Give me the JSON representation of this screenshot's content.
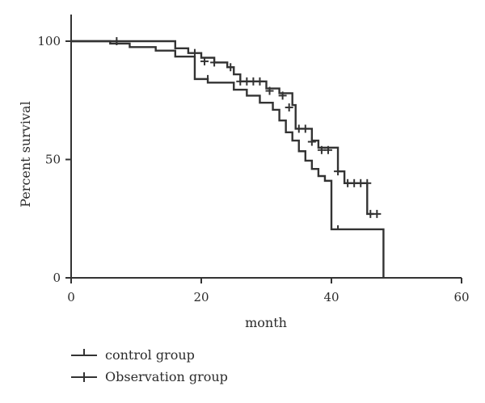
{
  "chart_data": {
    "type": "line",
    "subtype": "kaplan-meier",
    "title": "",
    "xlabel": "month",
    "ylabel": "Percent survival",
    "xlim": [
      0,
      60
    ],
    "ylim": [
      0,
      100
    ],
    "xticks": [
      0,
      20,
      40,
      60
    ],
    "yticks": [
      0,
      50,
      100
    ],
    "grid": false,
    "legend_position": "bottom-left",
    "series": [
      {
        "name": "control group",
        "color": "#333333",
        "marker": "censor-tick",
        "steps": [
          [
            0,
            100
          ],
          [
            6,
            99
          ],
          [
            9,
            97.5
          ],
          [
            13,
            96
          ],
          [
            16,
            93.5
          ],
          [
            19,
            84
          ],
          [
            21,
            82.5
          ],
          [
            25,
            79.5
          ],
          [
            27,
            77
          ],
          [
            29,
            74
          ],
          [
            31,
            71
          ],
          [
            32,
            66.5
          ],
          [
            33,
            61.5
          ],
          [
            34,
            58
          ],
          [
            35,
            53.5
          ],
          [
            36,
            49.5
          ],
          [
            37,
            46
          ],
          [
            38,
            43
          ],
          [
            39,
            41
          ],
          [
            40,
            20.5
          ],
          [
            48,
            20.5
          ],
          [
            48,
            0
          ]
        ],
        "censored": [
          [
            7,
            99
          ],
          [
            21,
            84
          ],
          [
            41,
            20.5
          ]
        ]
      },
      {
        "name": "Observation group",
        "color": "#333333",
        "marker": "censor-cross",
        "steps": [
          [
            0,
            100
          ],
          [
            16,
            97
          ],
          [
            18,
            95
          ],
          [
            20,
            93
          ],
          [
            22,
            91
          ],
          [
            24,
            89
          ],
          [
            25,
            86
          ],
          [
            26,
            83
          ],
          [
            30,
            80
          ],
          [
            32,
            78
          ],
          [
            34,
            73
          ],
          [
            34.5,
            63
          ],
          [
            37,
            58
          ],
          [
            38,
            55
          ],
          [
            41,
            45
          ],
          [
            42,
            40
          ],
          [
            45.5,
            27
          ],
          [
            46.5,
            27
          ]
        ],
        "censored": [
          [
            7,
            100
          ],
          [
            19,
            95
          ],
          [
            20.5,
            91.5
          ],
          [
            22,
            91
          ],
          [
            24.5,
            89
          ],
          [
            26,
            83
          ],
          [
            27,
            83
          ],
          [
            28,
            83
          ],
          [
            29,
            83
          ],
          [
            30.5,
            79
          ],
          [
            32.5,
            77
          ],
          [
            33.5,
            72
          ],
          [
            35,
            63
          ],
          [
            36,
            63
          ],
          [
            37,
            57.5
          ],
          [
            38.5,
            54
          ],
          [
            39.5,
            54
          ],
          [
            41,
            45
          ],
          [
            42.5,
            40
          ],
          [
            43.5,
            40
          ],
          [
            44.5,
            40
          ],
          [
            45.5,
            40
          ],
          [
            46,
            27
          ],
          [
            47,
            27
          ]
        ]
      }
    ]
  }
}
